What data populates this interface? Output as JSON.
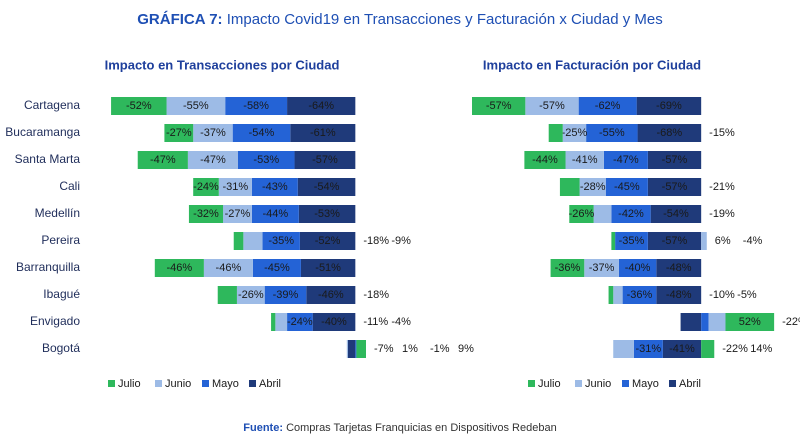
{
  "title": {
    "label": "GRÁFICA 7:",
    "text": "Impacto Covid19 en Transacciones y Facturación x Ciudad y Mes"
  },
  "source": {
    "label": "Fuente:",
    "text": "Compras Tarjetas Franquicias en Dispositivos Redeban"
  },
  "chart_data": [
    {
      "type": "bar",
      "orientation": "horizontal",
      "stacked": true,
      "title": "Impacto en Transacciones por Ciudad",
      "categories": [
        "Cartagena",
        "Bucaramanga",
        "Santa Marta",
        "Cali",
        "Medellín",
        "Pereira",
        "Barranquilla",
        "Ibagué",
        "Envigado",
        "Bogotá"
      ],
      "xlim": [
        -230,
        40
      ],
      "series": [
        {
          "name": "Abril",
          "color": "#1f3a7a",
          "values": [
            -64,
            -61,
            -57,
            -54,
            -53,
            -52,
            -51,
            -46,
            -40,
            -7
          ],
          "value_labels": [
            "-64%",
            "-61%",
            "-57%",
            "-54%",
            "-53%",
            "-52%",
            "-51%",
            "-46%",
            "-40%",
            "-7%"
          ]
        },
        {
          "name": "Mayo",
          "color": "#2463d6",
          "values": [
            -58,
            -54,
            -53,
            -43,
            -44,
            -35,
            -45,
            -39,
            -24,
            1
          ],
          "value_labels": [
            "-58%",
            "-54%",
            "-53%",
            "-43%",
            "-44%",
            "-35%",
            "-45%",
            "-39%",
            "-24%",
            "1%"
          ]
        },
        {
          "name": "Junio",
          "color": "#9dbbe6",
          "values": [
            -55,
            -37,
            -47,
            -31,
            -27,
            -18,
            -46,
            -26,
            -11,
            -1
          ],
          "value_labels": [
            "-55%",
            "-37%",
            "-47%",
            "-31%",
            "-27%",
            "-18%",
            "-46%",
            "-26%",
            "-11%",
            "-1%"
          ]
        },
        {
          "name": "Julio",
          "color": "#2eb85c",
          "values": [
            -52,
            -27,
            -47,
            -24,
            -32,
            -9,
            -46,
            -18,
            -4,
            9
          ],
          "value_labels": [
            "-52%",
            "-27%",
            "-47%",
            "-24%",
            "-32%",
            "-9%",
            "-46%",
            "-18%",
            "-4%",
            "9%"
          ]
        }
      ]
    },
    {
      "type": "bar",
      "orientation": "horizontal",
      "stacked": true,
      "title": "Impacto en Facturación por Ciudad",
      "xlim": [
        -245,
        80
      ],
      "series": [
        {
          "name": "Abril",
          "color": "#1f3a7a",
          "values": [
            -69,
            -68,
            -57,
            -57,
            -54,
            -57,
            -48,
            -48,
            -22,
            -41
          ],
          "value_labels": [
            "-69%",
            "-68%",
            "-57%",
            "-57%",
            "-54%",
            "-57%",
            "-48%",
            "-48%",
            "-22%",
            "-41%"
          ]
        },
        {
          "name": "Mayo",
          "color": "#2463d6",
          "values": [
            -62,
            -55,
            -47,
            -45,
            -42,
            -35,
            -40,
            -36,
            8,
            -31
          ],
          "value_labels": [
            "-62%",
            "-55%",
            "-47%",
            "-45%",
            "-42%",
            "-35%",
            "-40%",
            "-36%",
            "8%",
            "-31%"
          ]
        },
        {
          "name": "Junio",
          "color": "#9dbbe6",
          "values": [
            -57,
            -25,
            -41,
            -28,
            -19,
            6,
            -37,
            -10,
            18,
            -22
          ],
          "value_labels": [
            "-57%",
            "-25%",
            "-41%",
            "-28%",
            "-19%",
            "6%",
            "-37%",
            "-10%",
            "18%",
            "-22%"
          ]
        },
        {
          "name": "Julio",
          "color": "#2eb85c",
          "values": [
            -57,
            -15,
            -44,
            -21,
            -26,
            -4,
            -36,
            -5,
            52,
            14
          ],
          "value_labels": [
            "-57%",
            "-15%",
            "-44%",
            "-21%",
            "-26%",
            "-4%",
            "-36%",
            "-5%",
            "52%",
            "14%"
          ]
        }
      ]
    }
  ]
}
